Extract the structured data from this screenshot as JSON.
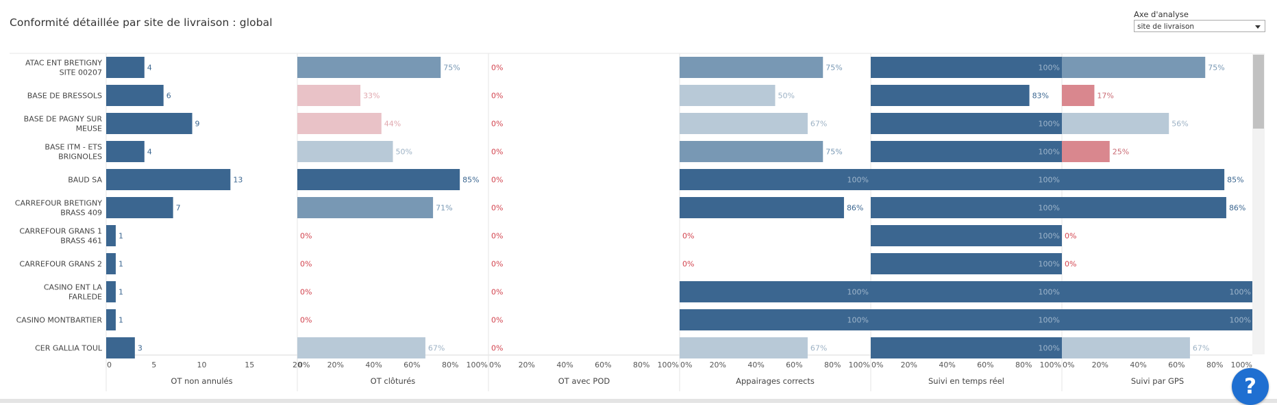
{
  "title": "Conformité détaillée par site de livraison : global",
  "dropdown": {
    "label": "Axe d'analyse",
    "value": "site de livraison"
  },
  "help": {
    "label": "?"
  },
  "colors": {
    "dark": "#3b6690",
    "mid": "#7898b4",
    "light": "#b8c9d7",
    "pink_light": "#e9c2c7",
    "pink": "#d9878e",
    "zero": "#d2434e",
    "grid": "#e6e6e6",
    "axis_text": "#555555",
    "count_label": "#3b6690"
  },
  "chart_data": {
    "type": "bar",
    "orientation": "horizontal",
    "categories": [
      "ATAC ENT BRETIGNY SITE 00207",
      "BASE DE BRESSOLS",
      "BASE DE PAGNY SUR MEUSE",
      "BASE ITM - ETS BRIGNOLES",
      "BAUD SA",
      "CARREFOUR BRETIGNY BRASS 409",
      "CARREFOUR GRANS 1 BRASS 461",
      "CARREFOUR GRANS 2",
      "CASINO ENT LA FARLEDE",
      "CASINO MONTBARTIER",
      "CER GALLIA TOUL"
    ],
    "category_lines": [
      [
        "ATAC ENT BRETIGNY",
        "SITE 00207"
      ],
      [
        "BASE DE BRESSOLS"
      ],
      [
        "BASE DE PAGNY SUR",
        "MEUSE"
      ],
      [
        "BASE ITM - ETS",
        "BRIGNOLES"
      ],
      [
        "BAUD SA"
      ],
      [
        "CARREFOUR BRETIGNY",
        "BRASS 409"
      ],
      [
        "CARREFOUR GRANS 1",
        "BRASS 461"
      ],
      [
        "CARREFOUR GRANS 2"
      ],
      [
        "CASINO ENT LA",
        "FARLEDE"
      ],
      [
        "CASINO MONTBARTIER"
      ],
      [
        "CER GALLIA TOUL"
      ]
    ],
    "panels": [
      {
        "name": "OT non annulés",
        "kind": "count",
        "xlim": [
          0,
          20
        ],
        "ticks": [
          "0",
          "5",
          "10",
          "15",
          "20"
        ],
        "tick_values": [
          0,
          5,
          10,
          15,
          20
        ],
        "values": [
          4,
          6,
          9,
          4,
          13,
          7,
          1,
          1,
          1,
          1,
          3
        ]
      },
      {
        "name": "OT clôturés",
        "kind": "percent",
        "xlim": [
          0,
          100
        ],
        "ticks": [
          "0%",
          "20%",
          "40%",
          "60%",
          "80%",
          "100%"
        ],
        "tick_values": [
          0,
          20,
          40,
          60,
          80,
          100
        ],
        "values": [
          75,
          33,
          44,
          50,
          85,
          71,
          0,
          0,
          0,
          0,
          67
        ]
      },
      {
        "name": "OT avec POD",
        "kind": "percent",
        "xlim": [
          0,
          100
        ],
        "ticks": [
          "0%",
          "20%",
          "40%",
          "60%",
          "80%",
          "100%"
        ],
        "tick_values": [
          0,
          20,
          40,
          60,
          80,
          100
        ],
        "values": [
          0,
          0,
          0,
          0,
          0,
          0,
          0,
          0,
          0,
          0,
          0
        ]
      },
      {
        "name": "Appairages corrects",
        "kind": "percent",
        "xlim": [
          0,
          100
        ],
        "ticks": [
          "0%",
          "20%",
          "40%",
          "60%",
          "80%",
          "100%"
        ],
        "tick_values": [
          0,
          20,
          40,
          60,
          80,
          100
        ],
        "values": [
          75,
          50,
          67,
          75,
          100,
          86,
          0,
          0,
          100,
          100,
          67
        ]
      },
      {
        "name": "Suivi en temps réel",
        "kind": "percent",
        "xlim": [
          0,
          100
        ],
        "ticks": [
          "0%",
          "20%",
          "40%",
          "60%",
          "80%",
          "100%"
        ],
        "tick_values": [
          0,
          20,
          40,
          60,
          80,
          100
        ],
        "values": [
          100,
          83,
          100,
          100,
          100,
          100,
          100,
          100,
          100,
          100,
          100
        ]
      },
      {
        "name": "Suivi par GPS",
        "kind": "percent",
        "xlim": [
          0,
          100
        ],
        "ticks": [
          "0%",
          "20%",
          "40%",
          "60%",
          "80%",
          "100%"
        ],
        "tick_values": [
          0,
          20,
          40,
          60,
          80,
          100
        ],
        "values": [
          75,
          17,
          56,
          25,
          85,
          86,
          0,
          0,
          100,
          100,
          67
        ]
      }
    ]
  }
}
